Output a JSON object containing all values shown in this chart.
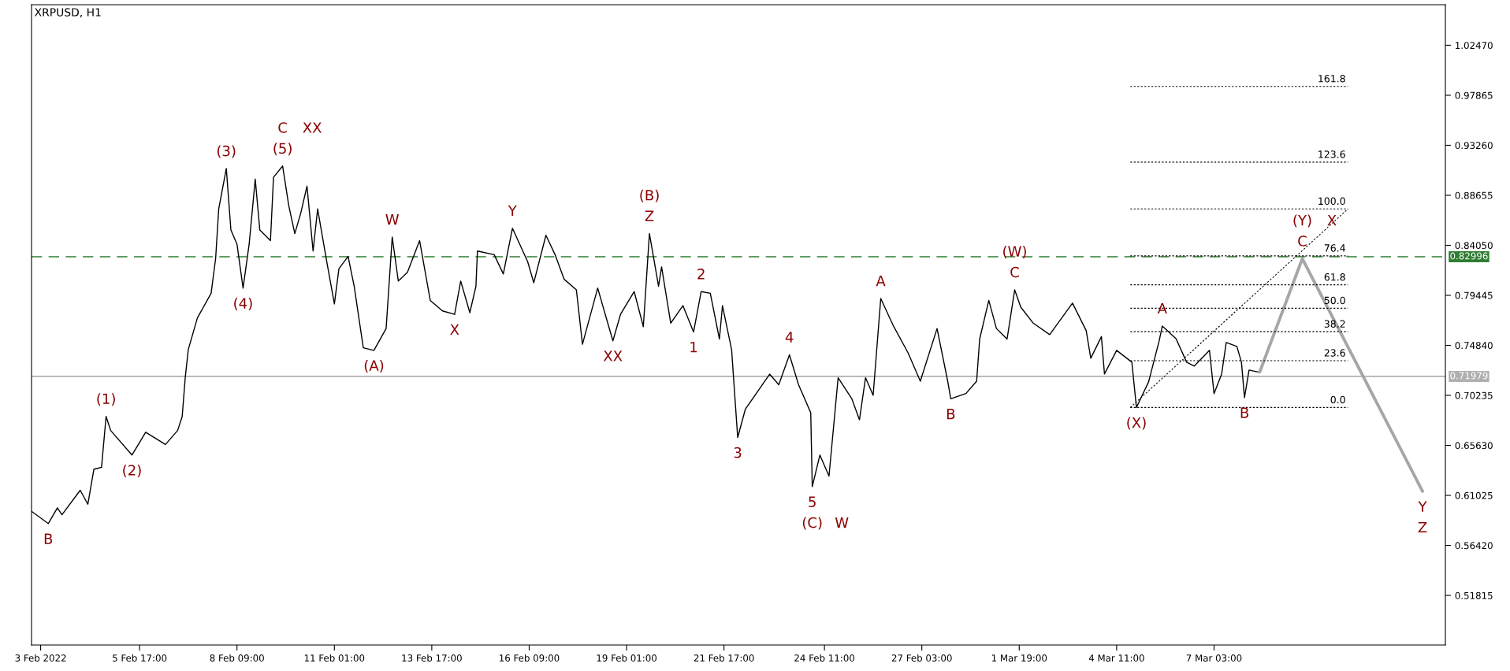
{
  "chart_data": {
    "type": "line",
    "title": "XRPUSD, H1",
    "xlim": [
      "2022-02-02T18:00",
      "2022-03-13T11:00"
    ],
    "xticks": [
      {
        "value": "2022-02-03T00:00",
        "label": "3 Feb 2022"
      },
      {
        "value": "2022-02-05T17:00",
        "label": "5 Feb 17:00"
      },
      {
        "value": "2022-02-08T09:00",
        "label": "8 Feb 09:00"
      },
      {
        "value": "2022-02-11T01:00",
        "label": "11 Feb 01:00"
      },
      {
        "value": "2022-02-13T17:00",
        "label": "13 Feb 17:00"
      },
      {
        "value": "2022-02-16T09:00",
        "label": "16 Feb 09:00"
      },
      {
        "value": "2022-02-19T01:00",
        "label": "19 Feb 01:00"
      },
      {
        "value": "2022-02-21T17:00",
        "label": "21 Feb 17:00"
      },
      {
        "value": "2022-02-24T11:00",
        "label": "24 Feb 11:00"
      },
      {
        "value": "2022-02-27T03:00",
        "label": "27 Feb 03:00"
      },
      {
        "value": "2022-03-01T19:00",
        "label": "1 Mar 19:00"
      },
      {
        "value": "2022-03-04T11:00",
        "label": "4 Mar 11:00"
      },
      {
        "value": "2022-03-07T03:00",
        "label": "7 Mar 03:00"
      }
    ],
    "ylim": [
      0.4725,
      1.062
    ],
    "yticks": [
      0.51815,
      {
        "value": 0.5642,
        "label": "0.56420"
      },
      0.61025,
      {
        "value": 0.6563,
        "label": "0.65630"
      },
      0.70235,
      {
        "value": 0.7484,
        "label": "0.74840"
      },
      0.79445,
      {
        "value": 0.8405,
        "label": "0.84050"
      },
      0.88655,
      {
        "value": 0.9326,
        "label": "0.93260"
      },
      0.97865,
      {
        "value": 1.0247,
        "label": "1.02470"
      }
    ],
    "grid": false,
    "legend": false,
    "ref_lines": [
      {
        "axis": "y",
        "value": 0.82996,
        "label": "0.82996",
        "color": "#2e7d32",
        "line_style": "dashed"
      },
      {
        "axis": "y",
        "value": 0.71979,
        "label": "0.71979",
        "color": "#b0b0b0",
        "line_style": "solid"
      }
    ],
    "series": [
      {
        "color": "#000000",
        "line_style": "solid",
        "x": [
          "2022-02-02T18:00",
          "2022-02-03T05:00",
          "2022-02-03T11:00",
          "2022-02-03T14:00",
          "2022-02-04T02:00",
          "2022-02-04T07:00",
          "2022-02-04T11:00",
          "2022-02-04T16:00",
          "2022-02-04T19:00",
          "2022-02-04T22:00",
          "2022-02-05T12:00",
          "2022-02-05T21:00",
          "2022-02-06T10:00",
          "2022-02-06T18:00",
          "2022-02-06T21:00",
          "2022-02-06T23:00",
          "2022-02-07T01:00",
          "2022-02-07T07:00",
          "2022-02-07T16:00",
          "2022-02-07T19:00",
          "2022-02-07T21:00",
          "2022-02-08T02:00",
          "2022-02-08T05:00",
          "2022-02-08T09:00",
          "2022-02-08T13:00",
          "2022-02-08T17:00",
          "2022-02-08T21:00",
          "2022-02-09T00:00",
          "2022-02-09T07:00",
          "2022-02-09T09:00",
          "2022-02-09T15:00",
          "2022-02-09T19:00",
          "2022-02-09T23:00",
          "2022-02-10T03:00",
          "2022-02-10T07:00",
          "2022-02-10T11:00",
          "2022-02-10T14:00",
          "2022-02-10T20:00",
          "2022-02-11T01:00",
          "2022-02-11T04:00",
          "2022-02-11T10:00",
          "2022-02-11T14:00",
          "2022-02-11T20:00",
          "2022-02-12T03:00",
          "2022-02-12T11:00",
          "2022-02-12T15:00",
          "2022-02-12T19:00",
          "2022-02-13T01:00",
          "2022-02-13T09:00",
          "2022-02-13T16:00",
          "2022-02-14T00:00",
          "2022-02-14T08:00",
          "2022-02-14T12:00",
          "2022-02-14T18:00",
          "2022-02-14T22:00",
          "2022-02-14T23:00",
          "2022-02-15T10:00",
          "2022-02-15T16:00",
          "2022-02-15T22:00",
          "2022-02-16T08:00",
          "2022-02-16T12:00",
          "2022-02-16T20:00",
          "2022-02-17T02:00",
          "2022-02-17T08:00",
          "2022-02-17T16:00",
          "2022-02-17T20:00",
          "2022-02-18T06:00",
          "2022-02-18T16:00",
          "2022-02-18T21:00",
          "2022-02-19T06:00",
          "2022-02-19T12:00",
          "2022-02-19T16:00",
          "2022-02-19T22:00",
          "2022-02-20T00:00",
          "2022-02-20T06:00",
          "2022-02-20T14:00",
          "2022-02-20T21:00",
          "2022-02-21T02:00",
          "2022-02-21T08:00",
          "2022-02-21T14:00",
          "2022-02-21T16:00",
          "2022-02-21T22:00",
          "2022-02-22T02:00",
          "2022-02-22T07:00",
          "2022-02-22T23:00",
          "2022-02-23T05:00",
          "2022-02-23T12:00",
          "2022-02-23T18:00",
          "2022-02-24T02:00",
          "2022-02-24T03:00",
          "2022-02-24T08:00",
          "2022-02-24T14:00",
          "2022-02-24T20:00",
          "2022-02-25T05:00",
          "2022-02-25T10:00",
          "2022-02-25T14:00",
          "2022-02-25T19:00",
          "2022-02-26T00:00",
          "2022-02-26T08:00",
          "2022-02-26T18:00",
          "2022-02-27T02:00",
          "2022-02-27T13:00",
          "2022-02-27T20:00",
          "2022-02-27T22:00",
          "2022-02-28T08:00",
          "2022-02-28T15:00",
          "2022-02-28T17:00",
          "2022-02-28T23:00",
          "2022-03-01T04:00",
          "2022-03-01T11:00",
          "2022-03-01T16:00",
          "2022-03-01T20:00",
          "2022-03-02T04:00",
          "2022-03-02T15:00",
          "2022-03-03T06:00",
          "2022-03-03T15:00",
          "2022-03-03T18:00",
          "2022-03-04T01:00",
          "2022-03-04T03:00",
          "2022-03-04T11:00",
          "2022-03-04T21:00",
          "2022-03-05T00:00",
          "2022-03-05T08:00",
          "2022-03-05T15:00",
          "2022-03-05T17:00",
          "2022-03-06T02:00",
          "2022-03-06T09:00",
          "2022-03-06T14:00",
          "2022-03-07T00:00",
          "2022-03-07T03:00",
          "2022-03-07T08:00",
          "2022-03-07T11:00",
          "2022-03-07T18:00",
          "2022-03-07T21:00",
          "2022-03-07T23:00",
          "2022-03-08T02:00",
          "2022-03-08T08:00"
        ],
        "values": [
          0.5956,
          0.5843,
          0.5988,
          0.5924,
          0.615,
          0.6021,
          0.6344,
          0.6361,
          0.683,
          0.67,
          0.6474,
          0.6684,
          0.6571,
          0.67,
          0.683,
          0.7186,
          0.7445,
          0.7737,
          0.7963,
          0.8287,
          0.874,
          0.9112,
          0.8546,
          0.8416,
          0.8011,
          0.8416,
          0.9015,
          0.8546,
          0.8448,
          0.9031,
          0.9135,
          0.8772,
          0.8513,
          0.8707,
          0.895,
          0.8352,
          0.874,
          0.8254,
          0.7866,
          0.819,
          0.8303,
          0.8028,
          0.7461,
          0.7438,
          0.7639,
          0.8481,
          0.8076,
          0.8157,
          0.8448,
          0.7898,
          0.7801,
          0.7769,
          0.8076,
          0.7785,
          0.8028,
          0.8352,
          0.8319,
          0.8141,
          0.8562,
          0.8254,
          0.806,
          0.8497,
          0.8319,
          0.8092,
          0.7995,
          0.7494,
          0.8011,
          0.7526,
          0.7769,
          0.7979,
          0.7656,
          0.8513,
          0.8028,
          0.8206,
          0.7688,
          0.785,
          0.7607,
          0.7979,
          0.7963,
          0.7542,
          0.785,
          0.7445,
          0.6636,
          0.6895,
          0.7219,
          0.7121,
          0.7397,
          0.7121,
          0.6863,
          0.6183,
          0.6474,
          0.628,
          0.7186,
          0.6992,
          0.6798,
          0.7186,
          0.7024,
          0.7915,
          0.7672,
          0.7413,
          0.7154,
          0.7639,
          0.7154,
          0.6992,
          0.7041,
          0.7154,
          0.7542,
          0.7898,
          0.7639,
          0.7542,
          0.7995,
          0.7836,
          0.7691,
          0.7583,
          0.7873,
          0.7619,
          0.7365,
          0.7565,
          0.722,
          0.7438,
          0.7329,
          0.6912,
          0.7148,
          0.7528,
          0.7662,
          0.7546,
          0.7329,
          0.7293,
          0.7438,
          0.7039,
          0.722,
          0.751,
          0.7474,
          0.7329,
          0.7003,
          0.7256,
          0.7238
        ]
      },
      {
        "color": "#a6a6a6",
        "line_style": "solid",
        "x": [
          "2022-03-08T09:00",
          "2022-03-09T13:00",
          "2022-03-12T20:00"
        ],
        "values": [
          0.7238,
          0.8282,
          0.614
        ]
      },
      {
        "color": "#000000",
        "line_style": "dotted",
        "x": [
          "2022-03-04T20:00",
          "2022-03-10T19:00"
        ],
        "values": [
          0.6912,
          0.874
        ]
      },
      {
        "color": "#000000",
        "line_style": "dotted",
        "x": [
          "2022-03-04T20:00",
          "2022-03-10T19:00"
        ],
        "values": [
          0.6912,
          0.6912
        ]
      },
      {
        "color": "#000000",
        "line_style": "dotted",
        "x": [
          "2022-03-04T20:00",
          "2022-03-10T19:00"
        ],
        "values": [
          0.7343,
          0.7343
        ]
      },
      {
        "color": "#000000",
        "line_style": "dotted",
        "x": [
          "2022-03-04T20:00",
          "2022-03-10T19:00"
        ],
        "values": [
          0.761,
          0.761
        ]
      },
      {
        "color": "#000000",
        "line_style": "dotted",
        "x": [
          "2022-03-04T20:00",
          "2022-03-10T19:00"
        ],
        "values": [
          0.7826,
          0.7826
        ]
      },
      {
        "color": "#000000",
        "line_style": "dotted",
        "x": [
          "2022-03-04T20:00",
          "2022-03-10T19:00"
        ],
        "values": [
          0.8041,
          0.8041
        ]
      },
      {
        "color": "#000000",
        "line_style": "dotted",
        "x": [
          "2022-03-04T20:00",
          "2022-03-10T19:00"
        ],
        "values": [
          0.8308,
          0.8308
        ]
      },
      {
        "color": "#000000",
        "line_style": "dotted",
        "x": [
          "2022-03-04T20:00",
          "2022-03-10T19:00"
        ],
        "values": [
          0.874,
          0.874
        ]
      },
      {
        "color": "#000000",
        "line_style": "dotted",
        "x": [
          "2022-03-04T20:00",
          "2022-03-10T19:00"
        ],
        "values": [
          0.9171,
          0.9171
        ]
      },
      {
        "color": "#000000",
        "line_style": "dotted",
        "x": [
          "2022-03-04T20:00",
          "2022-03-10T19:00"
        ],
        "values": [
          0.9868,
          0.9868
        ]
      }
    ],
    "annotations": [
      {
        "text": "(5)",
        "x": "2022-02-09T15:00",
        "y": 0.9135
      },
      {
        "text": "C",
        "x": "2022-02-09T15:00",
        "y": 0.9135
      },
      {
        "text": "XX",
        "x": "2022-02-09T15:00",
        "y": 0.9135
      },
      {
        "text": "(3)",
        "x": "2022-02-08T02:00",
        "y": 0.9112
      },
      {
        "text": "(4)",
        "x": "2022-02-08T13:00",
        "y": 0.8011
      },
      {
        "text": "(1)",
        "x": "2022-02-04T19:00",
        "y": 0.683
      },
      {
        "text": "(2)",
        "x": "2022-02-05T12:00",
        "y": 0.6474
      },
      {
        "text": "B",
        "x": "2022-02-03T05:00",
        "y": 0.5843
      },
      {
        "text": "W",
        "x": "2022-02-12T15:00",
        "y": 0.8481
      },
      {
        "text": "(A)",
        "x": "2022-02-12T03:00",
        "y": 0.7438
      },
      {
        "text": "X",
        "x": "2022-02-14T08:00",
        "y": 0.7769
      },
      {
        "text": "Y",
        "x": "2022-02-15T22:00",
        "y": 0.8562
      },
      {
        "text": "XX",
        "x": "2022-02-18T16:00",
        "y": 0.7526
      },
      {
        "text": "Z",
        "x": "2022-02-19T16:00",
        "y": 0.8513
      },
      {
        "text": "(B)",
        "x": "2022-02-19T16:00",
        "y": 0.8513
      },
      {
        "text": "1",
        "x": "2022-02-20T21:00",
        "y": 0.7607
      },
      {
        "text": "2",
        "x": "2022-02-21T02:00",
        "y": 0.7979
      },
      {
        "text": "3",
        "x": "2022-02-22T02:00",
        "y": 0.6636
      },
      {
        "text": "4",
        "x": "2022-02-23T12:00",
        "y": 0.7397
      },
      {
        "text": "5",
        "x": "2022-02-24T03:00",
        "y": 0.6183
      },
      {
        "text": "(C)",
        "x": "2022-02-24T03:00",
        "y": 0.6183
      },
      {
        "text": "W",
        "x": "2022-02-24T03:00",
        "y": 0.6183
      },
      {
        "text": "A",
        "x": "2022-02-26T00:00",
        "y": 0.7915
      },
      {
        "text": "B",
        "x": "2022-02-27T22:00",
        "y": 0.6992
      },
      {
        "text": "C",
        "x": "2022-03-01T16:00",
        "y": 0.7995
      },
      {
        "text": "(W)",
        "x": "2022-03-01T16:00",
        "y": 0.7995
      },
      {
        "text": "(X)",
        "x": "2022-03-05T00:00",
        "y": 0.6912
      },
      {
        "text": "A",
        "x": "2022-03-05T17:00",
        "y": 0.7662
      },
      {
        "text": "B",
        "x": "2022-03-07T23:00",
        "y": 0.7003
      },
      {
        "text": "C",
        "x": "2022-03-09T13:00",
        "y": 0.8282
      },
      {
        "text": "(Y)",
        "x": "2022-03-09T13:00",
        "y": 0.8282
      },
      {
        "text": "X",
        "x": "2022-03-09T13:00",
        "y": 0.8282
      },
      {
        "text": "Y",
        "x": "2022-03-12T20:00",
        "y": 0.614
      },
      {
        "text": "Z",
        "x": "2022-03-12T20:00",
        "y": 0.614
      },
      {
        "text": "0.0",
        "x": "2022-03-10T19:00",
        "y": 0.6912
      },
      {
        "text": "23.6",
        "x": "2022-03-10T19:00",
        "y": 0.7343
      },
      {
        "text": "38.2",
        "x": "2022-03-10T19:00",
        "y": 0.761
      },
      {
        "text": "50.0",
        "x": "2022-03-10T19:00",
        "y": 0.7826
      },
      {
        "text": "61.8",
        "x": "2022-03-10T19:00",
        "y": 0.8041
      },
      {
        "text": "76.4",
        "x": "2022-03-10T19:00",
        "y": 0.8308
      },
      {
        "text": "100.0",
        "x": "2022-03-10T19:00",
        "y": 0.874
      },
      {
        "text": "123.6",
        "x": "2022-03-10T19:00",
        "y": 0.9171
      },
      {
        "text": "161.8",
        "x": "2022-03-10T19:00",
        "y": 0.9868
      }
    ]
  }
}
